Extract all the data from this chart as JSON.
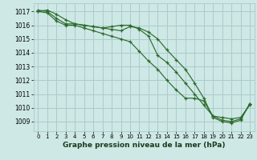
{
  "xlabel": "Graphe pression niveau de la mer (hPa)",
  "bg_color": "#cde8e5",
  "grid_color": "#aacccc",
  "line_color": "#2d6b2d",
  "xlim": [
    -0.5,
    23.5
  ],
  "ylim": [
    1008.3,
    1017.6
  ],
  "yticks": [
    1009,
    1010,
    1011,
    1012,
    1013,
    1014,
    1015,
    1016,
    1017
  ],
  "xticks": [
    0,
    1,
    2,
    3,
    4,
    5,
    6,
    7,
    8,
    9,
    10,
    11,
    12,
    13,
    14,
    15,
    16,
    17,
    18,
    19,
    20,
    21,
    22,
    23
  ],
  "series": [
    [
      1017.0,
      1017.1,
      1016.8,
      1016.4,
      1016.1,
      1016.0,
      1015.9,
      1015.8,
      1015.7,
      1015.6,
      1015.9,
      1015.8,
      1015.5,
      1015.0,
      1014.2,
      1013.5,
      1012.8,
      1011.8,
      1010.7,
      1009.3,
      1009.0,
      1008.9,
      1009.1,
      1010.3
    ],
    [
      1017.1,
      1017.0,
      1016.5,
      1016.1,
      1016.1,
      1016.0,
      1015.9,
      1015.8,
      1015.9,
      1016.0,
      1016.0,
      1015.7,
      1015.2,
      1013.8,
      1013.3,
      1012.6,
      1011.8,
      1011.0,
      1010.2,
      1009.4,
      1009.3,
      1009.2,
      1009.3,
      1010.2
    ],
    [
      1017.0,
      1016.9,
      1016.3,
      1016.0,
      1016.0,
      1015.8,
      1015.6,
      1015.4,
      1015.2,
      1015.0,
      1014.8,
      1014.1,
      1013.4,
      1012.8,
      1012.0,
      1011.3,
      1010.7,
      1010.7,
      1010.5,
      1009.4,
      1009.1,
      1009.0,
      1009.2,
      1010.3
    ]
  ],
  "tick_fontsize": 5.5,
  "xlabel_fontsize": 6.5
}
